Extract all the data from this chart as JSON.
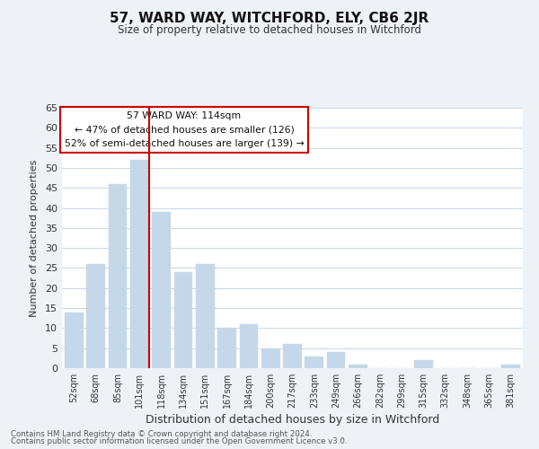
{
  "title": "57, WARD WAY, WITCHFORD, ELY, CB6 2JR",
  "subtitle": "Size of property relative to detached houses in Witchford",
  "xlabel": "Distribution of detached houses by size in Witchford",
  "ylabel": "Number of detached properties",
  "categories": [
    "52sqm",
    "68sqm",
    "85sqm",
    "101sqm",
    "118sqm",
    "134sqm",
    "151sqm",
    "167sqm",
    "184sqm",
    "200sqm",
    "217sqm",
    "233sqm",
    "249sqm",
    "266sqm",
    "282sqm",
    "299sqm",
    "315sqm",
    "332sqm",
    "348sqm",
    "365sqm",
    "381sqm"
  ],
  "values": [
    14,
    26,
    46,
    52,
    39,
    24,
    26,
    10,
    11,
    5,
    6,
    3,
    4,
    1,
    0,
    0,
    2,
    0,
    0,
    0,
    1
  ],
  "bar_color": "#c5d8ea",
  "bar_edge_color": "#c5d8ea",
  "vline_index": 3,
  "vline_color": "#cc0000",
  "ylim": [
    0,
    65
  ],
  "yticks": [
    0,
    5,
    10,
    15,
    20,
    25,
    30,
    35,
    40,
    45,
    50,
    55,
    60,
    65
  ],
  "annotation_title": "57 WARD WAY: 114sqm",
  "annotation_line1": "← 47% of detached houses are smaller (126)",
  "annotation_line2": "52% of semi-detached houses are larger (139) →",
  "annotation_box_color": "#ffffff",
  "annotation_box_edge": "#cc0000",
  "footer_line1": "Contains HM Land Registry data © Crown copyright and database right 2024.",
  "footer_line2": "Contains public sector information licensed under the Open Government Licence v3.0.",
  "background_color": "#edf2f7",
  "plot_bg_color": "#ffffff",
  "grid_color": "#c8d8e8"
}
